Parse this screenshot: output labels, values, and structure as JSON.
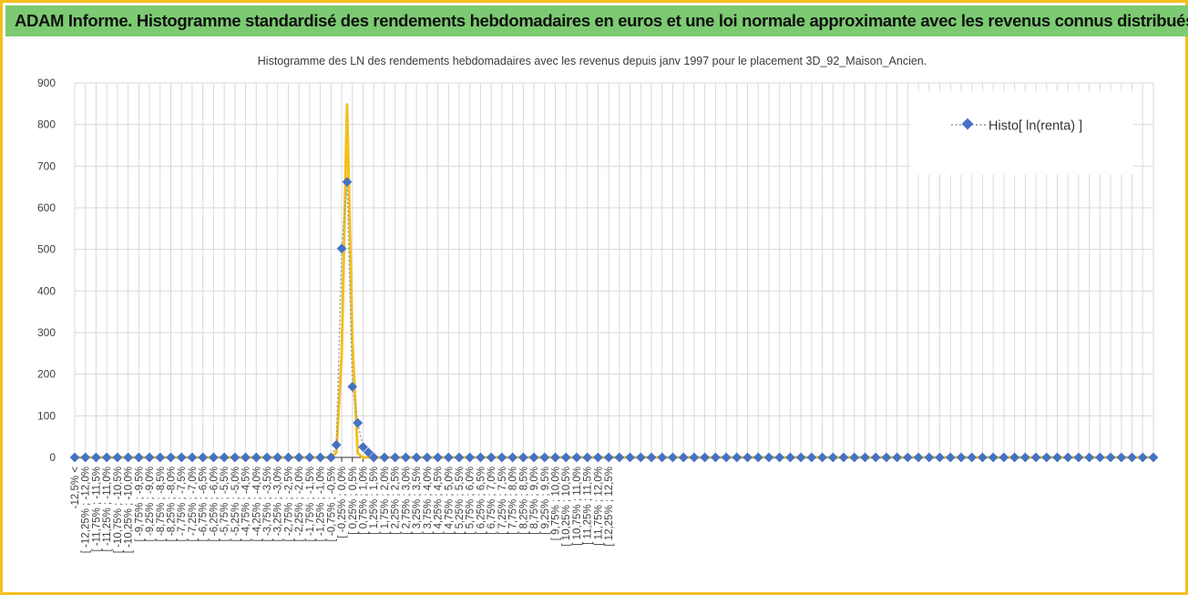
{
  "banner": {
    "title": "ADAM Informe. Histogramme standardisé des rendements hebdomadaires en euros et une loi normale approximante avec les revenus connus distribués"
  },
  "colors": {
    "banner_bg": "#7ccb72",
    "frame": "#f5bf1d",
    "histo_series": "#4472c4",
    "normal_series": "#f5bf1d",
    "grid": "#d9d9d9"
  },
  "chart_data": {
    "type": "line",
    "title": "Histogramme  des LN des rendements hebdomadaires avec les revenus depuis janv 1997 pour le placement 3D_92_Maison_Ancien.",
    "xlabel": "",
    "ylabel": "",
    "ylim": [
      0,
      900
    ],
    "yticks": [
      0,
      100,
      200,
      300,
      400,
      500,
      600,
      700,
      800,
      900
    ],
    "grid": true,
    "legend_position": "top-right",
    "categories": [
      "-12,5% <",
      "[ -12,25% ; -12,0%",
      "[ -11,75% ; -11,5%",
      "[ -11,25% ; -11,0%",
      "[ -10,75% ; -10,5%",
      "[ -10,25% ; -10,0%",
      "[ -9,75% ; -9,5%",
      "[ -9,25% ; -9,0%",
      "[ -8,75% ; -8,5%",
      "[ -8,25% ; -8,0%",
      "[ -7,75% ; -7,5%",
      "[ -7,25% ; -7,0%",
      "[ -6,75% ; -6,5%",
      "[ -6,25% ; -6,0%",
      "[ -5,75% ; -5,5%",
      "[ -5,25% ; -5,0%",
      "[ -4,75% ; -4,5%",
      "[ -4,25% ; -4,0%",
      "[ -3,75% ; -3,5%",
      "[ -3,25% ; -3,0%",
      "[ -2,75% ; -2,5%",
      "[ -2,25% ; -2,0%",
      "[ -1,75% ; -1,5%",
      "[ -1,25% ; -1,0%",
      "[ -0,75% ; -0,5%",
      "[ -0,25% ; 0,0%",
      "[ 0,25% ; 0,5%",
      "[ 0,75% ; 1,0%",
      "[ 1,25% ; 1,5%",
      "[ 1,75% ; 2,0%",
      "[ 2,25% ; 2,5%",
      "[ 2,75% ; 3,0%",
      "[ 3,25% ; 3,5%",
      "[ 3,75% ; 4,0%",
      "[ 4,25% ; 4,5%",
      "[ 4,75% ; 5,0%",
      "[ 5,25% ; 5,5%",
      "[ 5,75% ; 6,0%",
      "[ 6,25% ; 6,5%",
      "[ 6,75% ; 7,0%",
      "[ 7,25% ; 7,5%",
      "[ 7,75% ; 8,0%",
      "[ 8,25% ; 8,5%",
      "[ 8,75% ; 9,0%",
      "[ 9,25% ; 9,5%",
      "[ 9,75% ; 10,0%",
      "[ 10,25% ; 10,5%",
      "[ 10,75% ; 11,0%",
      "[ 11,25% ; 11,5%",
      "[ 11,75% ; 12,0%",
      "[ 12,25% ; 12,5%"
    ],
    "histo": {
      "name": "Histo[ ln(renta) ]",
      "points": [
        [
          -12.5,
          0
        ],
        [
          -12.0,
          0
        ],
        [
          -11.5,
          0
        ],
        [
          -11.0,
          0
        ],
        [
          -10.5,
          0
        ],
        [
          -10.0,
          0
        ],
        [
          -9.5,
          0
        ],
        [
          -9.0,
          0
        ],
        [
          -8.5,
          0
        ],
        [
          -8.0,
          0
        ],
        [
          -7.5,
          0
        ],
        [
          -7.0,
          0
        ],
        [
          -6.5,
          0
        ],
        [
          -6.0,
          0
        ],
        [
          -5.5,
          0
        ],
        [
          -5.0,
          0
        ],
        [
          -4.5,
          0
        ],
        [
          -4.0,
          0
        ],
        [
          -3.5,
          0
        ],
        [
          -3.0,
          0
        ],
        [
          -2.5,
          0
        ],
        [
          -2.0,
          0
        ],
        [
          -1.5,
          0
        ],
        [
          -1.0,
          0
        ],
        [
          -0.5,
          0
        ],
        [
          -0.25,
          30
        ],
        [
          0.0,
          502
        ],
        [
          0.25,
          662
        ],
        [
          0.5,
          170
        ],
        [
          0.75,
          83
        ],
        [
          1.0,
          25
        ],
        [
          1.25,
          12
        ],
        [
          1.5,
          0
        ],
        [
          2.0,
          0
        ],
        [
          2.5,
          0
        ],
        [
          3.0,
          0
        ],
        [
          3.5,
          0
        ],
        [
          4.0,
          0
        ],
        [
          4.5,
          0
        ],
        [
          5.0,
          0
        ],
        [
          5.5,
          0
        ],
        [
          6.0,
          0
        ],
        [
          6.5,
          0
        ],
        [
          7.0,
          0
        ],
        [
          7.5,
          0
        ],
        [
          8.0,
          0
        ],
        [
          8.5,
          0
        ],
        [
          9.0,
          0
        ],
        [
          9.5,
          0
        ],
        [
          10.0,
          0
        ],
        [
          10.5,
          0
        ],
        [
          11.0,
          0
        ],
        [
          11.5,
          0
        ],
        [
          12.0,
          0
        ],
        [
          12.5,
          0
        ],
        [
          13.0,
          0
        ],
        [
          13.5,
          0
        ],
        [
          14.0,
          0
        ],
        [
          14.5,
          0
        ],
        [
          15.0,
          0
        ],
        [
          15.5,
          0
        ],
        [
          16.0,
          0
        ],
        [
          16.5,
          0
        ],
        [
          17.0,
          0
        ],
        [
          17.5,
          0
        ],
        [
          18.0,
          0
        ],
        [
          18.5,
          0
        ],
        [
          19.0,
          0
        ],
        [
          19.5,
          0
        ],
        [
          20.0,
          0
        ],
        [
          20.5,
          0
        ],
        [
          21.0,
          0
        ],
        [
          21.5,
          0
        ],
        [
          22.0,
          0
        ],
        [
          22.5,
          0
        ],
        [
          23.0,
          0
        ],
        [
          23.5,
          0
        ],
        [
          24.0,
          0
        ],
        [
          24.5,
          0
        ],
        [
          25.0,
          0
        ],
        [
          25.5,
          0
        ],
        [
          26.0,
          0
        ],
        [
          26.5,
          0
        ],
        [
          27.0,
          0
        ],
        [
          27.5,
          0
        ],
        [
          28.0,
          0
        ],
        [
          28.5,
          0
        ],
        [
          29.0,
          0
        ],
        [
          29.5,
          0
        ],
        [
          30.0,
          0
        ],
        [
          30.5,
          0
        ],
        [
          31.0,
          0
        ],
        [
          31.5,
          0
        ],
        [
          32.0,
          0
        ],
        [
          32.5,
          0
        ],
        [
          33.0,
          0
        ],
        [
          33.5,
          0
        ],
        [
          34.0,
          0
        ],
        [
          34.5,
          0
        ],
        [
          35.0,
          0
        ],
        [
          35.5,
          0
        ],
        [
          36.0,
          0
        ],
        [
          36.5,
          0
        ],
        [
          37.0,
          0
        ],
        [
          37.5,
          0
        ],
        [
          38.0,
          0
        ]
      ]
    },
    "normal": {
      "points": [
        [
          -12.5,
          0
        ],
        [
          -12.0,
          0
        ],
        [
          -11.5,
          0
        ],
        [
          -11.0,
          0
        ],
        [
          -10.5,
          0
        ],
        [
          -10.0,
          0
        ],
        [
          -9.5,
          0
        ],
        [
          -9.0,
          0
        ],
        [
          -8.5,
          0
        ],
        [
          -8.0,
          0
        ],
        [
          -7.5,
          0
        ],
        [
          -7.0,
          0
        ],
        [
          -6.5,
          0
        ],
        [
          -6.0,
          0
        ],
        [
          -5.5,
          0
        ],
        [
          -5.0,
          0
        ],
        [
          -4.5,
          0
        ],
        [
          -4.0,
          0
        ],
        [
          -3.5,
          0
        ],
        [
          -3.0,
          0
        ],
        [
          -2.5,
          0
        ],
        [
          -2.0,
          0
        ],
        [
          -1.5,
          0
        ],
        [
          -1.0,
          0
        ],
        [
          -0.5,
          0
        ],
        [
          -0.25,
          12
        ],
        [
          0.0,
          250
        ],
        [
          0.25,
          848
        ],
        [
          0.5,
          280
        ],
        [
          0.75,
          10
        ],
        [
          1.0,
          0
        ],
        [
          1.5,
          0
        ],
        [
          2.0,
          0
        ],
        [
          2.5,
          0
        ],
        [
          3.0,
          0
        ],
        [
          3.5,
          0
        ],
        [
          4.0,
          0
        ],
        [
          4.5,
          0
        ],
        [
          5.0,
          0
        ],
        [
          5.5,
          0
        ],
        [
          6.0,
          0
        ],
        [
          6.5,
          0
        ],
        [
          7.0,
          0
        ],
        [
          7.5,
          0
        ],
        [
          8.0,
          0
        ],
        [
          8.5,
          0
        ],
        [
          9.0,
          0
        ],
        [
          9.5,
          0
        ],
        [
          10.0,
          0
        ],
        [
          10.5,
          0
        ],
        [
          11.0,
          0
        ],
        [
          11.5,
          0
        ],
        [
          12.0,
          0
        ],
        [
          12.5,
          0
        ],
        [
          13.0,
          0
        ],
        [
          13.5,
          0
        ],
        [
          14.0,
          0
        ],
        [
          14.5,
          0
        ],
        [
          15.0,
          0
        ],
        [
          15.5,
          0
        ],
        [
          16.0,
          0
        ],
        [
          16.5,
          0
        ],
        [
          17.0,
          0
        ],
        [
          17.5,
          0
        ],
        [
          18.0,
          0
        ],
        [
          18.5,
          0
        ],
        [
          19.0,
          0
        ],
        [
          19.5,
          0
        ],
        [
          20.0,
          0
        ],
        [
          20.5,
          0
        ],
        [
          21.0,
          0
        ],
        [
          21.5,
          0
        ],
        [
          22.0,
          0
        ],
        [
          22.5,
          0
        ],
        [
          23.0,
          0
        ],
        [
          23.5,
          0
        ],
        [
          24.0,
          0
        ],
        [
          24.5,
          0
        ],
        [
          25.0,
          0
        ],
        [
          25.5,
          0
        ],
        [
          26.0,
          0
        ],
        [
          26.5,
          0
        ],
        [
          27.0,
          0
        ],
        [
          27.5,
          0
        ],
        [
          28.0,
          0
        ],
        [
          28.5,
          0
        ],
        [
          29.0,
          0
        ],
        [
          29.5,
          0
        ],
        [
          30.0,
          0
        ],
        [
          30.5,
          0
        ],
        [
          31.0,
          0
        ],
        [
          31.5,
          0
        ],
        [
          32.0,
          0
        ],
        [
          32.5,
          0
        ],
        [
          33.0,
          0
        ],
        [
          33.5,
          0
        ],
        [
          34.0,
          0
        ],
        [
          34.5,
          0
        ],
        [
          35.0,
          0
        ],
        [
          35.5,
          0
        ],
        [
          36.0,
          0
        ],
        [
          36.5,
          0
        ],
        [
          37.0,
          0
        ],
        [
          37.5,
          0
        ],
        [
          38.0,
          0
        ]
      ]
    }
  }
}
